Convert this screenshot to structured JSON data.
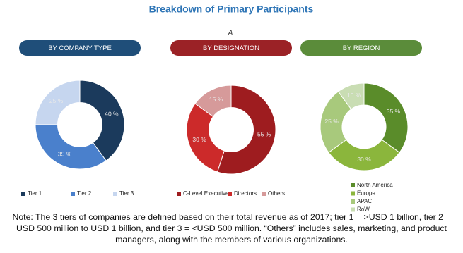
{
  "title": "Breakdown of Primary Participants",
  "annotation": "A",
  "note": "Note: The 3 tiers of companies are defined based on their total revenue as of 2017; tier 1 = >USD 1 billion, tier 2 = USD 500 million to USD 1 billion, and tier 3 = <USD 500 million.  “Others” includes sales, marketing, and product managers, along with the members of various organizations.",
  "chart_data": [
    {
      "type": "pie",
      "title": "BY COMPANY TYPE",
      "title_color": "#1f4e79",
      "categories": [
        "Tier 1",
        "Tier 2",
        "Tier 3"
      ],
      "values": [
        40,
        35,
        25
      ],
      "value_labels": [
        "40 %",
        "35 %",
        "25 %"
      ],
      "colors": [
        "#1b3a5c",
        "#4a80cc",
        "#c6d6ef"
      ]
    },
    {
      "type": "pie",
      "title": "BY DESIGNATION",
      "title_color": "#9b2226",
      "categories": [
        "C-Level Executives",
        "Directors",
        "Others"
      ],
      "values": [
        55,
        30,
        15
      ],
      "value_labels": [
        "55 %",
        "30 %",
        "15 %"
      ],
      "colors": [
        "#9e1c1f",
        "#cc2a2a",
        "#d69a9a"
      ]
    },
    {
      "type": "pie",
      "title": "BY REGION",
      "title_color": "#5b8c3a",
      "categories": [
        "North America",
        "Europe",
        "APAC",
        "RoW"
      ],
      "values": [
        35,
        30,
        25,
        10
      ],
      "value_labels": [
        "35 %",
        "30 %",
        "25 %",
        "10 %"
      ],
      "colors": [
        "#5a8c2a",
        "#8bb63c",
        "#a8c97c",
        "#c9ddb3"
      ]
    }
  ]
}
